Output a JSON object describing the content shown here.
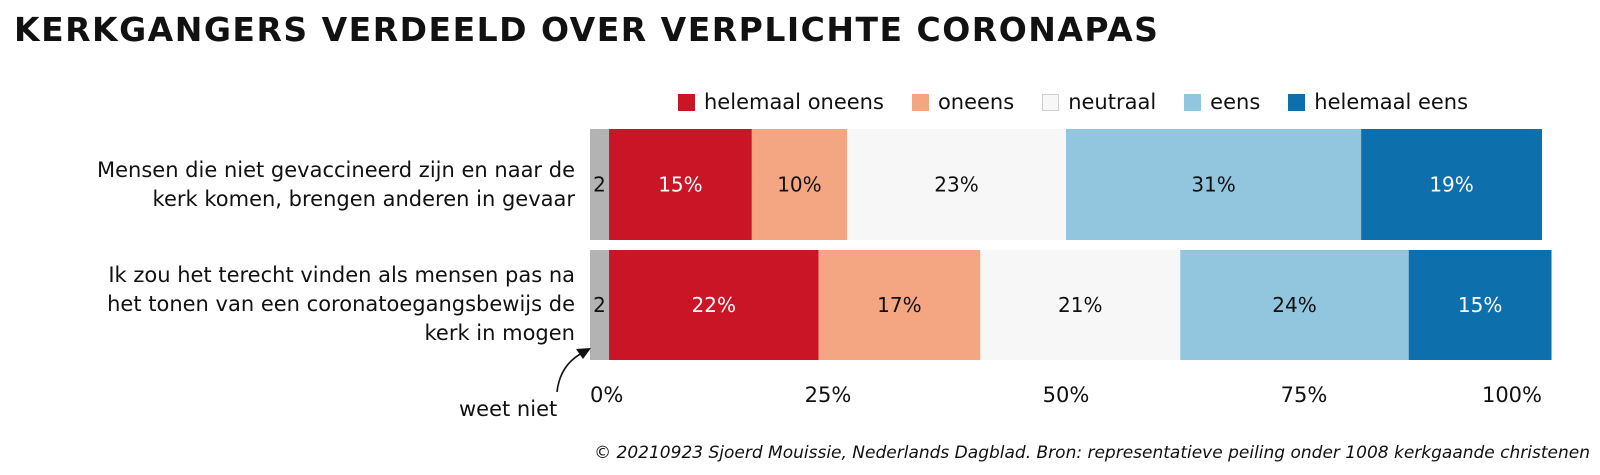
{
  "title": "KERKGANGERS VERDEELD OVER VERPLICHTE CORONAPAS",
  "credit": "© 20210923 Sjoerd Mouissie, Nederlands Dagblad. Bron: representatieve peiling onder 1008 kerkgaande christenen",
  "weet_niet_note": "weet niet",
  "chart_data": {
    "type": "bar",
    "orientation": "horizontal",
    "stacked": true,
    "title": "KERKGANGERS VERDEELD OVER VERPLICHTE CORONAPAS",
    "legend_position": "top-right",
    "xlim": [
      0,
      100
    ],
    "x_ticks": [
      "0%",
      "25%",
      "50%",
      "75%",
      "100%"
    ],
    "categories": [
      [
        "Mensen die niet gevaccineerd zijn en naar de",
        "kerk komen, brengen anderen in gevaar"
      ],
      [
        "Ik zou het terecht vinden als mensen pas na",
        "het tonen van een coronatoegangsbewijs de",
        "kerk in mogen"
      ]
    ],
    "series": [
      {
        "name": "weet niet",
        "color": "#b3b3b3",
        "text_color": "#111111",
        "values": [
          2,
          2
        ],
        "labels": [
          "2",
          "2"
        ],
        "in_legend": false
      },
      {
        "name": "helemaal oneens",
        "color": "#c91526",
        "text_color": "#ffffff",
        "values": [
          15,
          22
        ],
        "labels": [
          "15%",
          "22%"
        ],
        "in_legend": true
      },
      {
        "name": "oneens",
        "color": "#f4a582",
        "text_color": "#111111",
        "values": [
          10,
          17
        ],
        "labels": [
          "10%",
          "17%"
        ],
        "in_legend": true
      },
      {
        "name": "neutraal",
        "color": "#f7f7f7",
        "text_color": "#111111",
        "values": [
          23,
          21
        ],
        "labels": [
          "23%",
          "21%"
        ],
        "in_legend": true
      },
      {
        "name": "eens",
        "color": "#92c5de",
        "text_color": "#111111",
        "values": [
          31,
          24
        ],
        "labels": [
          "31%",
          "24%"
        ],
        "in_legend": true
      },
      {
        "name": "helemaal eens",
        "color": "#0e6fad",
        "text_color": "#ffffff",
        "values": [
          19,
          15
        ],
        "labels": [
          "19%",
          "15%"
        ],
        "in_legend": true
      }
    ]
  }
}
